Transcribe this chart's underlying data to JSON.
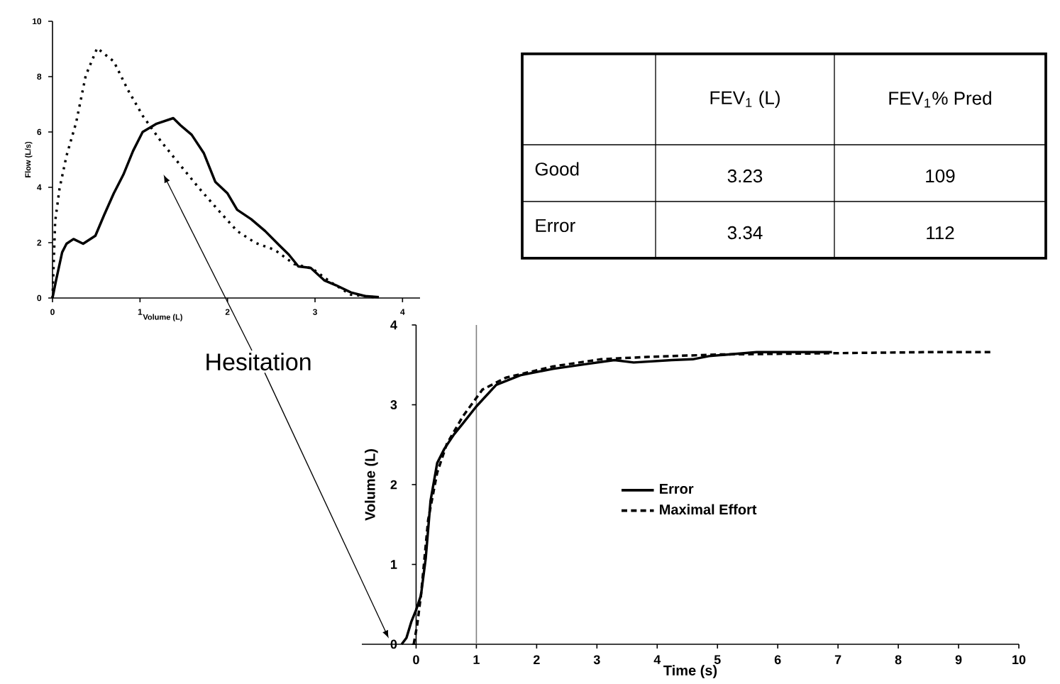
{
  "chart_data": [
    {
      "type": "line",
      "xlabel": "Volume (L)",
      "ylabel": "Flow (L/s)",
      "xlim": [
        0,
        4.2
      ],
      "ylim": [
        0,
        10
      ],
      "xticks": [
        0,
        1,
        2,
        3,
        4
      ],
      "yticks": [
        0,
        2,
        4,
        6,
        8,
        10
      ],
      "annotations": [
        "Hesitation"
      ],
      "series": [
        {
          "color": "#000000",
          "line_style": "solid",
          "x": [
            0,
            0.04,
            0.11,
            0.16,
            0.24,
            0.35,
            0.49,
            0.59,
            0.7,
            0.81,
            0.92,
            1.03,
            1.19,
            1.38,
            1.46,
            1.59,
            1.73,
            1.86,
            2.0,
            2.11,
            2.27,
            2.43,
            2.59,
            2.7,
            2.81,
            2.95,
            3.11,
            3.24,
            3.41,
            3.57,
            3.73
          ],
          "values": [
            0,
            0.63,
            1.65,
            1.96,
            2.13,
            1.96,
            2.25,
            3.0,
            3.78,
            4.46,
            5.31,
            6.0,
            6.3,
            6.5,
            6.25,
            5.9,
            5.23,
            4.2,
            3.78,
            3.19,
            2.85,
            2.42,
            1.91,
            1.57,
            1.14,
            1.09,
            0.63,
            0.46,
            0.2,
            0.07,
            0.03
          ]
        },
        {
          "color": "#000000",
          "line_style": "dotted",
          "x": [
            0,
            0.03,
            0.08,
            0.16,
            0.27,
            0.38,
            0.51,
            0.7,
            0.86,
            1.03,
            1.24,
            1.46,
            1.68,
            1.89,
            2.11,
            2.32,
            2.54,
            2.76,
            2.97,
            3.19,
            3.41,
            3.68
          ],
          "values": [
            0,
            2.76,
            3.95,
            5.14,
            6.34,
            8.04,
            9.03,
            8.55,
            7.53,
            6.59,
            5.66,
            4.8,
            3.95,
            3.19,
            2.42,
            1.99,
            1.74,
            1.23,
            1.06,
            0.55,
            0.12,
            0.03
          ]
        }
      ]
    },
    {
      "type": "line",
      "xlabel": "Time (s)",
      "ylabel": "Volume (L)",
      "xlim": [
        -0.9,
        10
      ],
      "ylim": [
        0,
        4
      ],
      "xticks": [
        0,
        1,
        2,
        3,
        4,
        5,
        6,
        7,
        8,
        9,
        10
      ],
      "yticks": [
        0,
        1,
        2,
        3,
        4
      ],
      "legend": "center",
      "ref_lines": [
        {
          "axis": "x",
          "value": 1,
          "color": "#808080"
        }
      ],
      "series": [
        {
          "name": "Error",
          "color": "#000000",
          "line_style": "solid",
          "x": [
            -0.24,
            -0.16,
            -0.08,
            0,
            0.08,
            0.16,
            0.24,
            0.35,
            0.47,
            0.63,
            0.78,
            1.0,
            1.33,
            1.73,
            2.27,
            2.82,
            3.29,
            3.61,
            4.24,
            4.59,
            4.86,
            5.65,
            6.9
          ],
          "values": [
            0,
            0.08,
            0.28,
            0.43,
            0.61,
            1.08,
            1.8,
            2.27,
            2.45,
            2.63,
            2.77,
            2.98,
            3.25,
            3.37,
            3.45,
            3.51,
            3.56,
            3.53,
            3.56,
            3.57,
            3.61,
            3.66,
            3.66
          ]
        },
        {
          "name": "Maximal Effort",
          "color": "#000000",
          "line_style": "dashed",
          "x": [
            -0.04,
            0.02,
            0.08,
            0.2,
            0.35,
            0.51,
            0.78,
            1.1,
            1.49,
            2.27,
            3.06,
            3.84,
            5.02,
            6.2,
            7.37,
            8.55,
            9.57
          ],
          "values": [
            0,
            0.25,
            0.61,
            1.56,
            2.15,
            2.51,
            2.86,
            3.19,
            3.34,
            3.48,
            3.57,
            3.6,
            3.63,
            3.64,
            3.65,
            3.66,
            3.66
          ]
        }
      ]
    },
    {
      "type": "other",
      "categories": [
        null,
        "FEV$_{1}$ (L)",
        "FEV$_{1}$% Pred"
      ],
      "y_categories": [
        "Good",
        "Error"
      ],
      "cell_labels": [
        [
          "3.23",
          "109"
        ],
        [
          "3.34",
          "112"
        ]
      ]
    }
  ]
}
